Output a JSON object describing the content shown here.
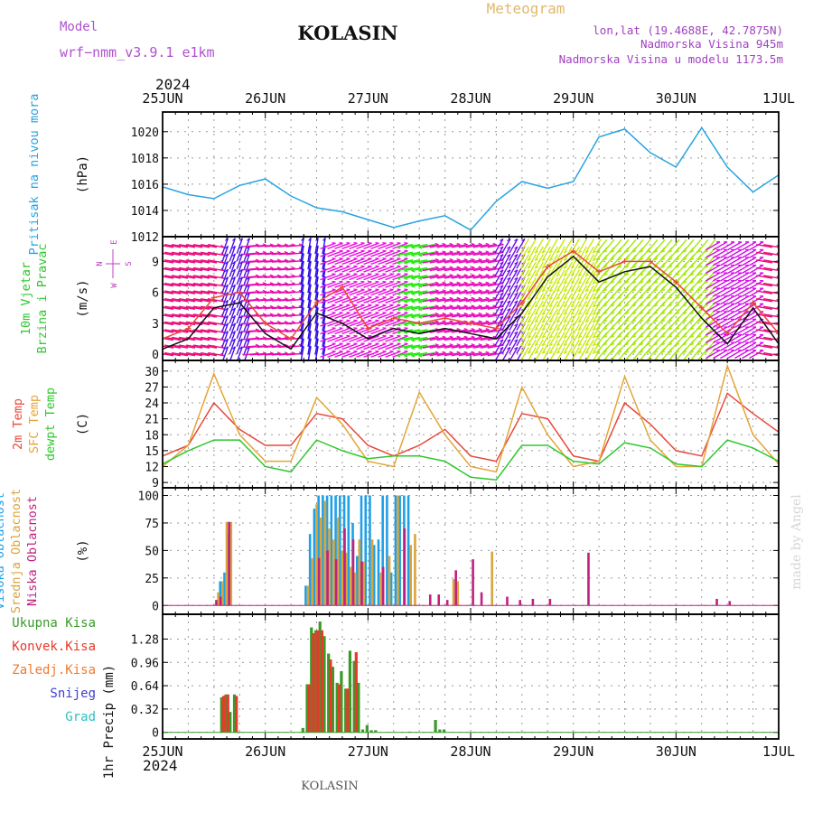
{
  "header": {
    "model_label": "Model",
    "model_name": "wrf−nmm_v3.9.1 e1km",
    "station": "KOLASIN",
    "product": "Meteogram",
    "lonlat": "lon,lat (19.4688E, 42.7875N)",
    "elevation": "Nadmorska Visina 945m",
    "model_elevation": "Nadmorska Visina u modelu 1173.5m",
    "year_top": "2024",
    "year_bottom": "2024",
    "footer_station": "KOLASIN",
    "credit": "made by Angel"
  },
  "colors": {
    "pressure": "#29a3e0",
    "temp2m": "#e8483c",
    "sfc": "#e3a63a",
    "dewpt": "#2ec82e",
    "cloud_high": "#1ea0e6",
    "cloud_mid": "#d9a53c",
    "cloud_low": "#c0207e",
    "wind_label": "#2ec82e",
    "precip_total": "#3a9a2a",
    "precip_conv": "#e63a2a",
    "precip_frz": "#f07a30",
    "precip_snow": "#4040d0",
    "precip_grad": "#30c0c0",
    "compass": "#c040c0"
  },
  "chart_data": {
    "type": "line",
    "x_ticks": [
      "25JUN",
      "26JUN",
      "27JUN",
      "28JUN",
      "29JUN",
      "30JUN",
      "1JUL"
    ],
    "x_range": [
      "2024-06-25T00:00",
      "2024-07-01T00:00"
    ],
    "panels": [
      {
        "id": "pressure",
        "type": "line",
        "ylabel": "(hPa)",
        "side_labels": [
          "Pritisak na nivou mora"
        ],
        "ylim": [
          1012,
          1021.5
        ],
        "yticks": [
          1012,
          1014,
          1016,
          1018,
          1020
        ],
        "series": [
          {
            "x": [
              "06-25 00",
              "06-25 06",
              "06-25 12",
              "06-25 18",
              "06-26 00",
              "06-26 06",
              "06-26 12",
              "06-26 18",
              "06-27 00",
              "06-27 06",
              "06-27 12",
              "06-27 18",
              "06-28 00",
              "06-28 06",
              "06-28 12",
              "06-28 18",
              "06-29 00",
              "06-29 06",
              "06-29 12",
              "06-29 18",
              "06-30 00",
              "06-30 06",
              "06-30 12",
              "06-30 18",
              "07-01 00"
            ],
            "values": [
              1015.8,
              1015.2,
              1014.9,
              1015.9,
              1016.4,
              1015.1,
              1014.2,
              1013.9,
              1013.3,
              1012.7,
              1013.2,
              1013.6,
              1012.5,
              1014.7,
              1016.2,
              1015.7,
              1016.2,
              1019.6,
              1020.2,
              1018.4,
              1017.3,
              1020.3,
              1017.3,
              1015.4,
              1016.7
            ]
          }
        ]
      },
      {
        "id": "wind",
        "type": "line",
        "ylabel": "(m/s)",
        "side_labels": [
          "10m Vjetar",
          "Brzina i Pravac"
        ],
        "compass": [
          "W",
          "N",
          "E",
          "S"
        ],
        "ylim": [
          -0.6,
          11.4
        ],
        "yticks": [
          0,
          3,
          6,
          9
        ],
        "series": [
          {
            "name": "speed",
            "x": [
              "06-25 00",
              "06-25 06",
              "06-25 12",
              "06-25 18",
              "06-26 00",
              "06-26 06",
              "06-26 12",
              "06-26 18",
              "06-27 00",
              "06-27 06",
              "06-27 12",
              "06-27 18",
              "06-28 00",
              "06-28 06",
              "06-28 12",
              "06-28 18",
              "06-29 00",
              "06-29 06",
              "06-29 12",
              "06-29 18",
              "06-30 00",
              "06-30 06",
              "06-30 12",
              "06-30 18",
              "07-01 00"
            ],
            "values": [
              0.5,
              1.5,
              4.5,
              5.0,
              2.0,
              0.5,
              4.0,
              3.0,
              1.5,
              2.5,
              2.0,
              2.5,
              2.0,
              1.5,
              4.0,
              7.5,
              9.5,
              7.0,
              8.0,
              8.5,
              6.5,
              3.5,
              1.0,
              4.5,
              1.0
            ]
          },
          {
            "name": "gust",
            "x": [
              "06-25 00",
              "06-25 06",
              "06-25 12",
              "06-25 18",
              "06-26 00",
              "06-26 06",
              "06-26 12",
              "06-26 18",
              "06-27 00",
              "06-27 06",
              "06-27 12",
              "06-27 18",
              "06-28 00",
              "06-28 06",
              "06-28 12",
              "06-28 18",
              "06-29 00",
              "06-29 06",
              "06-29 12",
              "06-29 18",
              "06-30 00",
              "06-30 06",
              "06-30 12",
              "06-30 18",
              "07-01 00"
            ],
            "values": [
              1.5,
              2.5,
              5.5,
              6.0,
              3.0,
              1.5,
              5.0,
              6.5,
              2.5,
              3.5,
              3.0,
              3.5,
              3.0,
              2.5,
              5.0,
              8.5,
              10.0,
              8.0,
              9.0,
              9.0,
              7.0,
              4.5,
              2.0,
              5.0,
              2.0
            ]
          }
        ],
        "barbs": {
          "levels": [
            0,
            0.75,
            1.5,
            2.25,
            3.0,
            3.75,
            4.5,
            5.25,
            6.0,
            6.75,
            7.5,
            8.25,
            9.0,
            9.75,
            10.5
          ],
          "segments": [
            {
              "from": "06-25 00",
              "to": "06-25 14",
              "dir_deg": 100,
              "speed": 2
            },
            {
              "from": "06-25 14",
              "to": "06-25 20",
              "dir_deg": 20,
              "speed": 3
            },
            {
              "from": "06-25 20",
              "to": "06-26 08",
              "dir_deg": 85,
              "speed": 2
            },
            {
              "from": "06-26 08",
              "to": "06-26 14",
              "dir_deg": 10,
              "speed": 4
            },
            {
              "from": "06-26 14",
              "to": "06-27 08",
              "dir_deg": 70,
              "speed": 3
            },
            {
              "from": "06-27 08",
              "to": "06-27 14",
              "dir_deg": 260,
              "speed": 3
            },
            {
              "from": "06-27 14",
              "to": "06-28 06",
              "dir_deg": 80,
              "speed": 2
            },
            {
              "from": "06-28 06",
              "to": "06-28 12",
              "dir_deg": 30,
              "speed": 3
            },
            {
              "from": "06-28 12",
              "to": "06-29 06",
              "dir_deg": 210,
              "speed": 8
            },
            {
              "from": "06-29 06",
              "to": "06-30 08",
              "dir_deg": 220,
              "speed": 7
            },
            {
              "from": "06-30 08",
              "to": "06-30 20",
              "dir_deg": 60,
              "speed": 3
            },
            {
              "from": "06-30 20",
              "to": "07-01 00",
              "dir_deg": 100,
              "speed": 1
            }
          ]
        }
      },
      {
        "id": "temperature",
        "type": "line",
        "ylabel": "(C)",
        "side_labels": [
          "2m Temp",
          "SFC Temp",
          "dewpt Temp"
        ],
        "ylim": [
          8,
          32
        ],
        "yticks": [
          9,
          12,
          15,
          18,
          21,
          24,
          27,
          30
        ],
        "series": [
          {
            "name": "2m Temp",
            "x": [
              "06-25 00",
              "06-25 06",
              "06-25 12",
              "06-25 18",
              "06-26 00",
              "06-26 06",
              "06-26 12",
              "06-26 18",
              "06-27 00",
              "06-27 06",
              "06-27 12",
              "06-27 18",
              "06-28 00",
              "06-28 06",
              "06-28 12",
              "06-28 18",
              "06-29 00",
              "06-29 06",
              "06-29 12",
              "06-29 18",
              "06-30 00",
              "06-30 06",
              "06-30 12",
              "06-30 18",
              "07-01 00"
            ],
            "values": [
              14.0,
              16.0,
              24.0,
              19.0,
              16.0,
              16.0,
              22.0,
              21.0,
              16.0,
              14.0,
              16.0,
              19.0,
              14.0,
              13.0,
              22.0,
              21.0,
              14.0,
              13.0,
              24.0,
              20.0,
              15.0,
              14.0,
              25.8,
              22.0,
              18.5
            ]
          },
          {
            "name": "SFC Temp",
            "x": [
              "06-25 00",
              "06-25 06",
              "06-25 12",
              "06-25 18",
              "06-26 00",
              "06-26 06",
              "06-26 12",
              "06-26 18",
              "06-27 00",
              "06-27 06",
              "06-27 12",
              "06-27 18",
              "06-28 00",
              "06-28 06",
              "06-28 12",
              "06-28 18",
              "06-29 00",
              "06-29 06",
              "06-29 12",
              "06-29 18",
              "06-30 00",
              "06-30 06",
              "06-30 12",
              "06-30 18",
              "07-01 00"
            ],
            "values": [
              12.0,
              16.0,
              29.5,
              18.0,
              13.0,
              13.0,
              25.0,
              20.0,
              13.0,
              12.0,
              26.0,
              18.0,
              12.0,
              11.0,
              27.0,
              18.0,
              12.0,
              13.0,
              29.0,
              17.0,
              12.0,
              12.0,
              31.0,
              18.0,
              12.5
            ]
          },
          {
            "name": "dewpt Temp",
            "x": [
              "06-25 00",
              "06-25 06",
              "06-25 12",
              "06-25 18",
              "06-26 00",
              "06-26 06",
              "06-26 12",
              "06-26 18",
              "06-27 00",
              "06-27 06",
              "06-27 12",
              "06-27 18",
              "06-28 00",
              "06-28 06",
              "06-28 12",
              "06-28 18",
              "06-29 00",
              "06-29 06",
              "06-29 12",
              "06-29 18",
              "06-30 00",
              "06-30 06",
              "06-30 12",
              "06-30 18",
              "07-01 00"
            ],
            "values": [
              12.5,
              15.0,
              17.0,
              17.0,
              12.0,
              11.0,
              17.0,
              15.0,
              13.5,
              14.0,
              14.0,
              13.0,
              10.0,
              9.5,
              16.0,
              16.0,
              13.0,
              12.5,
              16.5,
              15.5,
              12.5,
              12.0,
              17.0,
              15.5,
              13.0
            ]
          }
        ]
      },
      {
        "id": "clouds",
        "type": "bar",
        "ylabel": "(%)",
        "side_labels": [
          "Visoka Oblacnost",
          "Srednja Oblacnost",
          "Niska Oblacnost"
        ],
        "ylim": [
          -8,
          107
        ],
        "yticks": [
          0,
          25,
          50,
          75,
          100
        ],
        "series": [
          {
            "name": "Visoka Oblacnost",
            "x": [
              "06-25 14",
              "06-25 15",
              "06-25 16",
              "06-26 10",
              "06-26 11",
              "06-26 12",
              "06-26 13",
              "06-26 14",
              "06-26 15",
              "06-26 16",
              "06-26 17",
              "06-26 18",
              "06-26 19",
              "06-26 20",
              "06-26 21",
              "06-26 22",
              "06-26 23",
              "06-27 00",
              "06-27 01",
              "06-27 02",
              "06-27 03",
              "06-27 04",
              "06-27 05",
              "06-27 06",
              "06-27 07",
              "06-27 08",
              "06-27 09",
              "06-27 10"
            ],
            "values": [
              22,
              30,
              65,
              18,
              65,
              88,
              100,
              100,
              100,
              100,
              100,
              100,
              100,
              100,
              75,
              45,
              100,
              100,
              100,
              55,
              60,
              100,
              100,
              30,
              100,
              100,
              100,
              100
            ]
          },
          {
            "name": "Srednja Oblacnost",
            "x": [
              "06-25 13",
              "06-25 14",
              "06-25 15",
              "06-25 16",
              "06-26 10",
              "06-26 11",
              "06-26 12",
              "06-26 13",
              "06-26 14",
              "06-26 15",
              "06-26 16",
              "06-26 17",
              "06-26 18",
              "06-26 19",
              "06-26 20",
              "06-26 21",
              "06-26 22",
              "06-26 23",
              "06-27 01",
              "06-27 03",
              "06-27 05",
              "06-27 07",
              "06-27 10",
              "06-27 11",
              "06-27 20",
              "06-27 21",
              "06-28 05"
            ],
            "values": [
              12,
              22,
              76,
              76,
              18,
              43,
              92,
              80,
              95,
              70,
              60,
              80,
              50,
              48,
              35,
              30,
              60,
              40,
              60,
              30,
              45,
              100,
              55,
              65,
              24,
              22,
              49
            ]
          },
          {
            "name": "Niska Oblacnost",
            "x": [
              "06-25 12",
              "06-25 13",
              "06-25 15",
              "06-26 12",
              "06-26 14",
              "06-26 16",
              "06-26 18",
              "06-26 20",
              "06-26 22",
              "06-27 03",
              "06-27 08",
              "06-27 14",
              "06-27 16",
              "06-27 18",
              "06-27 20",
              "06-28 00",
              "06-28 02",
              "06-28 08",
              "06-28 11",
              "06-28 14",
              "06-28 18",
              "06-29 03",
              "06-30 09",
              "06-30 12"
            ],
            "values": [
              5,
              8,
              76,
              43,
              50,
              42,
              70,
              60,
              40,
              35,
              70,
              10,
              10,
              5,
              32,
              42,
              12,
              8,
              5,
              6,
              6,
              48,
              6,
              4
            ]
          }
        ]
      },
      {
        "id": "precip",
        "type": "bar",
        "ylabel": "1hr Precip (mm)",
        "side_labels": [
          "Ukupna Kisa",
          "Konvek.Kisa",
          "Zaledj.Kisa",
          "Snijeg",
          "Grad"
        ],
        "ylim": [
          -0.09,
          1.62
        ],
        "yticks": [
          0,
          0.32,
          0.64,
          0.96,
          1.28
        ],
        "ytick_labels": [
          "0",
          "0.32",
          "0.64",
          "0.96",
          "1.28"
        ],
        "series": [
          {
            "name": "Ukupna Kisa",
            "x": [
              "06-25 14",
              "06-25 15",
              "06-25 16",
              "06-25 17",
              "06-25 18",
              "06-26 09",
              "06-26 10",
              "06-26 11",
              "06-26 12",
              "06-26 13",
              "06-26 14",
              "06-26 15",
              "06-26 16",
              "06-26 17",
              "06-26 18",
              "06-26 19",
              "06-26 20",
              "06-26 21",
              "06-26 22",
              "06-26 23",
              "06-27 00",
              "06-27 01",
              "06-27 02",
              "06-27 10",
              "06-27 16",
              "06-27 17",
              "06-27 18"
            ],
            "values": [
              0.48,
              0.52,
              0.28,
              0.52,
              0.0,
              0.06,
              0.66,
              1.44,
              1.4,
              1.52,
              1.32,
              1.08,
              0.9,
              0.68,
              0.84,
              0.6,
              1.12,
              0.98,
              0.68,
              0.04,
              0.1,
              0.03,
              0.03,
              0.01,
              0.17,
              0.04,
              0.04
            ]
          },
          {
            "name": "Konvek.Kisa",
            "x": [
              "06-25 14",
              "06-25 15",
              "06-25 17",
              "06-26 10",
              "06-26 11",
              "06-26 12",
              "06-26 13",
              "06-26 15",
              "06-26 17",
              "06-26 19",
              "06-26 21"
            ],
            "values": [
              0.5,
              0.52,
              0.5,
              0.66,
              1.36,
              1.4,
              1.4,
              1.0,
              0.66,
              0.6,
              1.1
            ]
          }
        ]
      }
    ]
  }
}
